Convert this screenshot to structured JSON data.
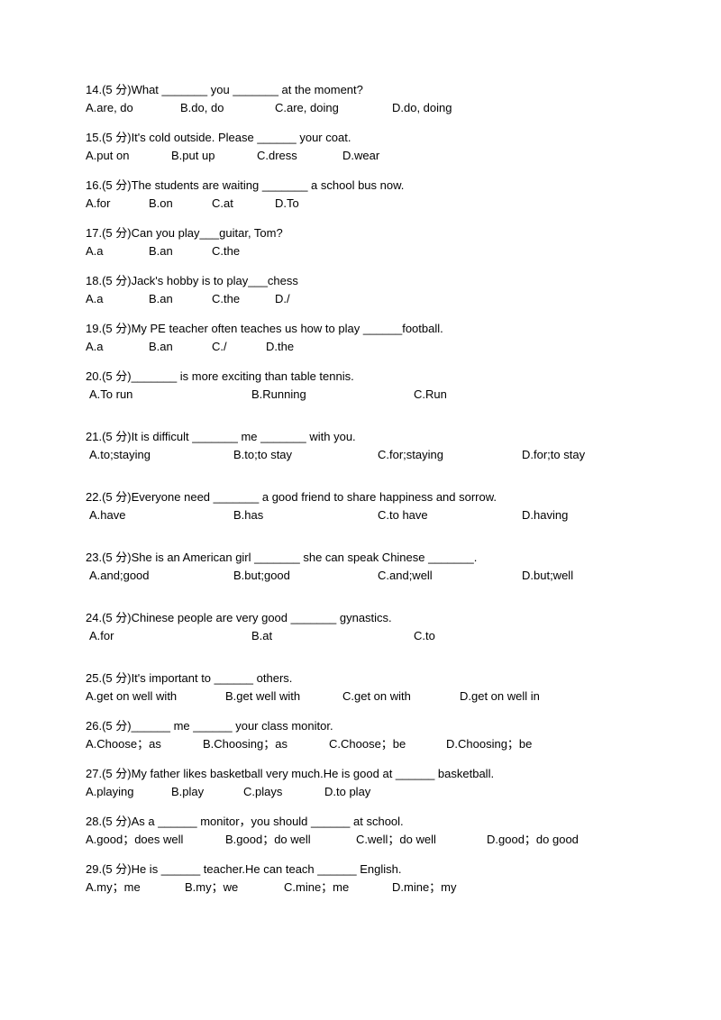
{
  "questions": [
    {
      "num": "14",
      "points": "5 分",
      "text": "What _______ you _______ at the moment?",
      "options": [
        "A.are, do",
        "B.do, do",
        "C.are, doing",
        "D.do, doing"
      ],
      "widths": [
        105,
        105,
        130,
        100
      ],
      "tall": false
    },
    {
      "num": "15",
      "points": "5 分",
      "text": "It's cold outside. Please ______ your coat.",
      "options": [
        "A.put on",
        "B.put up",
        "C.dress",
        "D.wear"
      ],
      "widths": [
        95,
        95,
        95,
        80
      ],
      "tall": false
    },
    {
      "num": "16",
      "points": "5 分",
      "text": "The students are waiting _______ a school bus now.",
      "options": [
        "A.for",
        "B.on",
        "C.at",
        "D.To"
      ],
      "widths": [
        70,
        70,
        70,
        60
      ],
      "tall": false
    },
    {
      "num": "17",
      "points": "5 分",
      "text": "Can you play___guitar, Tom?",
      "options": [
        "A.a",
        "B.an",
        "C.the"
      ],
      "widths": [
        70,
        70,
        60
      ],
      "tall": false
    },
    {
      "num": "18",
      "points": "5 分",
      "text": "Jack's hobby is to play___chess",
      "options": [
        "A.a",
        "B.an",
        "C.the",
        "D./"
      ],
      "widths": [
        70,
        70,
        70,
        50
      ],
      "tall": false
    },
    {
      "num": "19",
      "points": "5 分",
      "text": "My PE teacher often teaches us how to play ______football.",
      "options": [
        "A.a",
        "B.an",
        "C./",
        "D.the"
      ],
      "widths": [
        70,
        70,
        60,
        60
      ],
      "tall": false
    },
    {
      "num": "20",
      "points": "5 分",
      "text": "_______ is more exciting than table tennis.",
      "options": [
        "A.To run",
        "B.Running",
        "C.Run"
      ],
      "widths": [
        180,
        180,
        100
      ],
      "tall": true,
      "indent": true
    },
    {
      "num": "21",
      "points": "5 分",
      "text": "It is difficult _______ me _______ with you.",
      "options": [
        "A.to;staying",
        "B.to;to stay",
        "C.for;staying",
        "D.for;to stay"
      ],
      "widths": [
        160,
        160,
        160,
        120
      ],
      "tall": true,
      "indent": true
    },
    {
      "num": "22",
      "points": "5 分",
      "text": "Everyone need _______ a good friend to share happiness and sorrow.",
      "options": [
        "A.have",
        "B.has",
        "C.to have",
        "D.having"
      ],
      "widths": [
        160,
        160,
        160,
        100
      ],
      "tall": true,
      "indent": true
    },
    {
      "num": "23",
      "points": "5 分",
      "text": "She is an American girl _______ she can speak Chinese _______.",
      "options": [
        "A.and;good",
        "B.but;good",
        "C.and;well",
        "D.but;well"
      ],
      "widths": [
        160,
        160,
        160,
        100
      ],
      "tall": true,
      "indent": true
    },
    {
      "num": "24",
      "points": "5 分",
      "text": "Chinese people are very good _______ gynastics.",
      "options": [
        "A.for",
        "B.at",
        "C.to"
      ],
      "widths": [
        180,
        180,
        80
      ],
      "tall": true,
      "indent": true
    },
    {
      "num": "25",
      "points": "5 分",
      "text": "It's important to ______ others.",
      "options": [
        "A.get on well with",
        "B.get well with",
        "C.get on with",
        "D.get on well in"
      ],
      "widths": [
        155,
        130,
        130,
        120
      ],
      "tall": false
    },
    {
      "num": "26",
      "points": "5 分",
      "text": "______ me ______ your class monitor.",
      "options": [
        "A.Choose；as",
        "B.Choosing；as",
        "C.Choose；be",
        "D.Choosing；be"
      ],
      "widths": [
        130,
        140,
        130,
        130
      ],
      "tall": false
    },
    {
      "num": "27",
      "points": "5 分",
      "text": "My father likes basketball very much.He is good at ______ basketball.",
      "options": [
        "A.playing",
        "B.play",
        "C.plays",
        "D.to play"
      ],
      "widths": [
        95,
        80,
        90,
        90
      ],
      "tall": false
    },
    {
      "num": "28",
      "points": "5 分",
      "text": "As a ______ monitor，you should ______ at school.",
      "options": [
        "A.good；does well",
        "B.good；do well",
        "C.well；do well",
        "D.good；do good"
      ],
      "widths": [
        155,
        145,
        145,
        130
      ],
      "tall": false
    },
    {
      "num": "29",
      "points": "5 分",
      "text": "He is ______ teacher.He can teach ______ English.",
      "options": [
        "A.my；me",
        "B.my；we",
        "C.mine；me",
        "D.mine；my"
      ],
      "widths": [
        110,
        110,
        120,
        100
      ],
      "tall": false
    }
  ]
}
